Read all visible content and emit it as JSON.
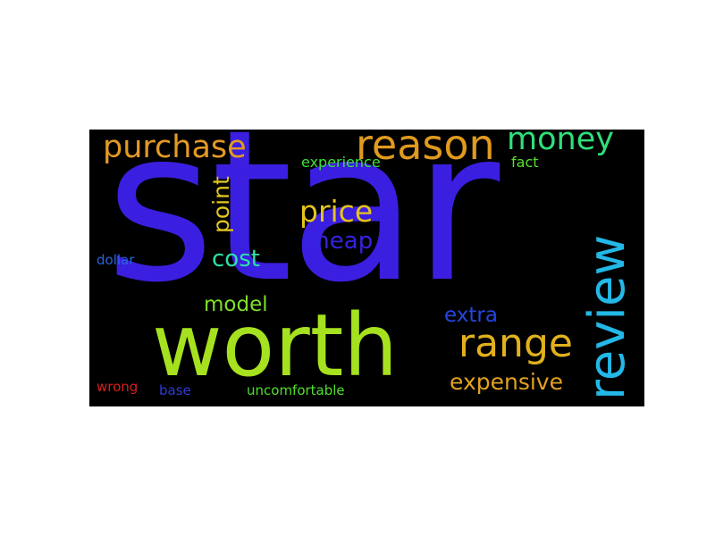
{
  "words": {
    "star": {
      "text": "star",
      "color": "#3a1fe0"
    },
    "worth": {
      "text": "worth",
      "color": "#a6e11f"
    },
    "review": {
      "text": "review",
      "color": "#23b8e8"
    },
    "reason": {
      "text": "reason",
      "color": "#e09a1e"
    },
    "purchase": {
      "text": "purchase",
      "color": "#e39a23"
    },
    "money": {
      "text": "money",
      "color": "#2fe07a"
    },
    "range": {
      "text": "range",
      "color": "#e1b11c"
    },
    "price": {
      "text": "price",
      "color": "#e6c21d"
    },
    "point": {
      "text": "point",
      "color": "#e1c61f"
    },
    "cheap": {
      "text": "cheap",
      "color": "#3523e0"
    },
    "cost": {
      "text": "cost",
      "color": "#2fe0a8"
    },
    "model": {
      "text": "model",
      "color": "#7fe026"
    },
    "extra": {
      "text": "extra",
      "color": "#2546e0"
    },
    "expensive": {
      "text": "expensive",
      "color": "#e1a220"
    },
    "experience": {
      "text": "experience",
      "color": "#3de03a"
    },
    "fact": {
      "text": "fact",
      "color": "#59e02e"
    },
    "dollar": {
      "text": "dollar",
      "color": "#2a63d9"
    },
    "wrong": {
      "text": "wrong",
      "color": "#d81d1d"
    },
    "base": {
      "text": "base",
      "color": "#2e3bd8"
    },
    "uncomfortable": {
      "text": "uncomfortable",
      "color": "#4fe02a"
    }
  }
}
